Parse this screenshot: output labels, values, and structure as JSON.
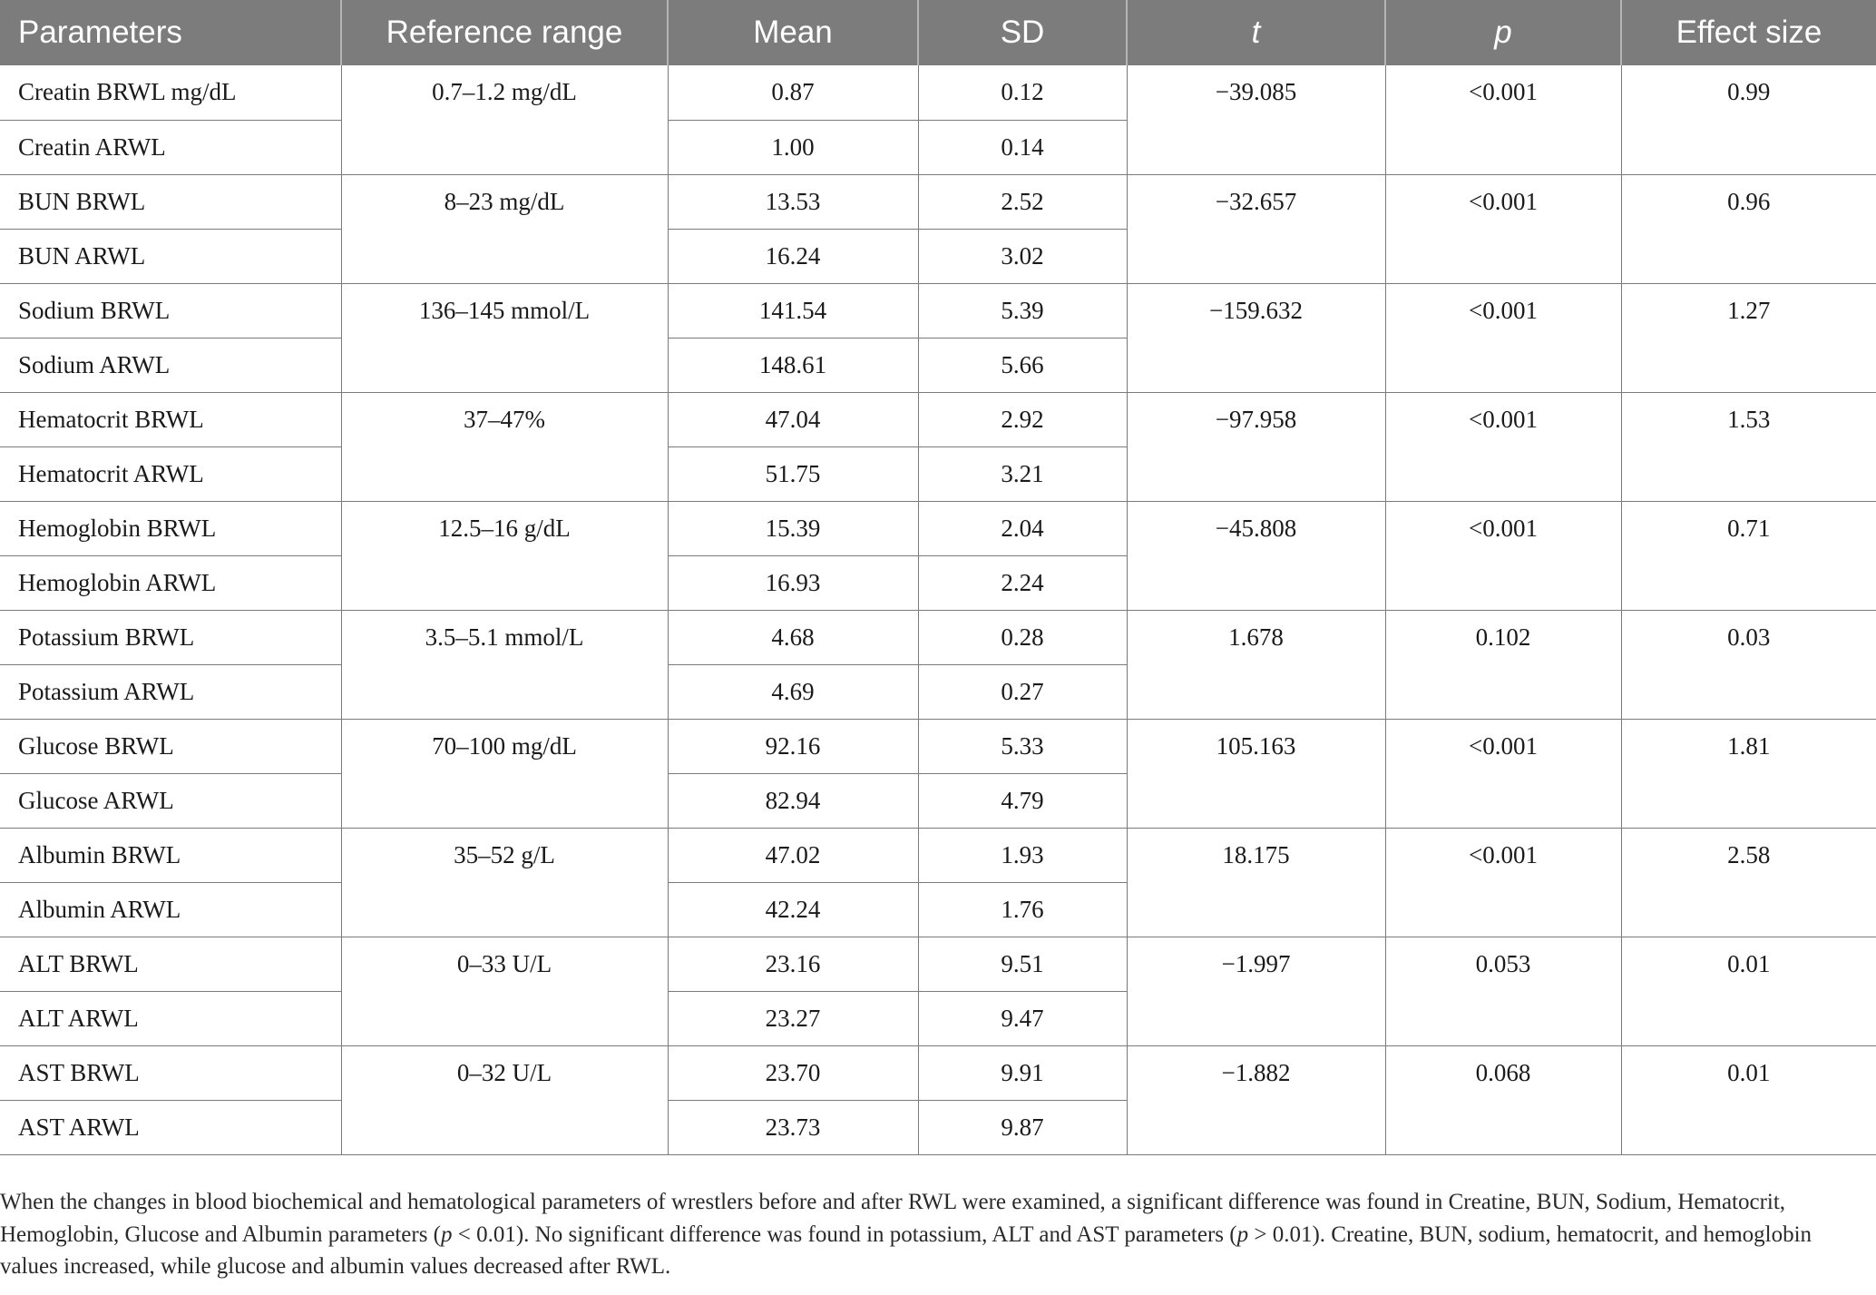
{
  "table": {
    "headers": [
      "Parameters",
      "Reference range",
      "Mean",
      "SD",
      "t",
      "p",
      "Effect size"
    ],
    "groups": [
      {
        "range": "0.7–1.2 mg/dL",
        "t": "−39.085",
        "p": "<0.001",
        "effect": "0.99",
        "rows": [
          {
            "name": "Creatin BRWL mg/dL",
            "mean": "0.87",
            "sd": "0.12"
          },
          {
            "name": "Creatin ARWL",
            "mean": "1.00",
            "sd": "0.14"
          }
        ]
      },
      {
        "range": "8–23 mg/dL",
        "t": "−32.657",
        "p": "<0.001",
        "effect": "0.96",
        "rows": [
          {
            "name": "BUN BRWL",
            "mean": "13.53",
            "sd": "2.52"
          },
          {
            "name": "BUN ARWL",
            "mean": "16.24",
            "sd": "3.02"
          }
        ]
      },
      {
        "range": "136–145 mmol/L",
        "t": "−159.632",
        "p": "<0.001",
        "effect": "1.27",
        "rows": [
          {
            "name": "Sodium BRWL",
            "mean": "141.54",
            "sd": "5.39"
          },
          {
            "name": "Sodium ARWL",
            "mean": "148.61",
            "sd": "5.66"
          }
        ]
      },
      {
        "range": "37–47%",
        "t": "−97.958",
        "p": "<0.001",
        "effect": "1.53",
        "rows": [
          {
            "name": "Hematocrit BRWL",
            "mean": "47.04",
            "sd": "2.92"
          },
          {
            "name": "Hematocrit ARWL",
            "mean": "51.75",
            "sd": "3.21"
          }
        ]
      },
      {
        "range": "12.5–16 g/dL",
        "t": "−45.808",
        "p": "<0.001",
        "effect": "0.71",
        "rows": [
          {
            "name": "Hemoglobin BRWL",
            "mean": "15.39",
            "sd": "2.04"
          },
          {
            "name": "Hemoglobin ARWL",
            "mean": "16.93",
            "sd": "2.24"
          }
        ]
      },
      {
        "range": "3.5–5.1 mmol/L",
        "t": "1.678",
        "p": "0.102",
        "effect": "0.03",
        "rows": [
          {
            "name": "Potassium BRWL",
            "mean": "4.68",
            "sd": "0.28"
          },
          {
            "name": "Potassium ARWL",
            "mean": "4.69",
            "sd": "0.27"
          }
        ]
      },
      {
        "range": "70–100 mg/dL",
        "t": "105.163",
        "p": "<0.001",
        "effect": "1.81",
        "rows": [
          {
            "name": "Glucose BRWL",
            "mean": "92.16",
            "sd": "5.33"
          },
          {
            "name": "Glucose ARWL",
            "mean": "82.94",
            "sd": "4.79"
          }
        ]
      },
      {
        "range": "35–52 g/L",
        "t": "18.175",
        "p": "<0.001",
        "effect": "2.58",
        "rows": [
          {
            "name": "Albumin BRWL",
            "mean": "47.02",
            "sd": "1.93"
          },
          {
            "name": "Albumin ARWL",
            "mean": "42.24",
            "sd": "1.76"
          }
        ]
      },
      {
        "range": "0–33 U/L",
        "t": "−1.997",
        "p": "0.053",
        "effect": "0.01",
        "rows": [
          {
            "name": "ALT BRWL",
            "mean": "23.16",
            "sd": "9.51"
          },
          {
            "name": "ALT ARWL",
            "mean": "23.27",
            "sd": "9.47"
          }
        ]
      },
      {
        "range": "0–32 U/L",
        "t": "−1.882",
        "p": "0.068",
        "effect": "0.01",
        "rows": [
          {
            "name": "AST BRWL",
            "mean": "23.70",
            "sd": "9.91"
          },
          {
            "name": "AST ARWL",
            "mean": "23.73",
            "sd": "9.87"
          }
        ]
      }
    ]
  },
  "footnote": {
    "part1": "When the changes in blood biochemical and hematological parameters of wrestlers before and after RWL were examined, a significant difference was found in Creatine, BUN, Sodium, Hematocrit, Hemoglobin, Glucose and Albumin parameters (",
    "p1": "p",
    "part2": " < 0.01). No significant difference was found in potassium, ALT and AST parameters (",
    "p2": "p",
    "part3": " > 0.01). Creatine, BUN, sodium, hematocrit, and hemoglobin values increased, while glucose and albumin values decreased after RWL."
  }
}
